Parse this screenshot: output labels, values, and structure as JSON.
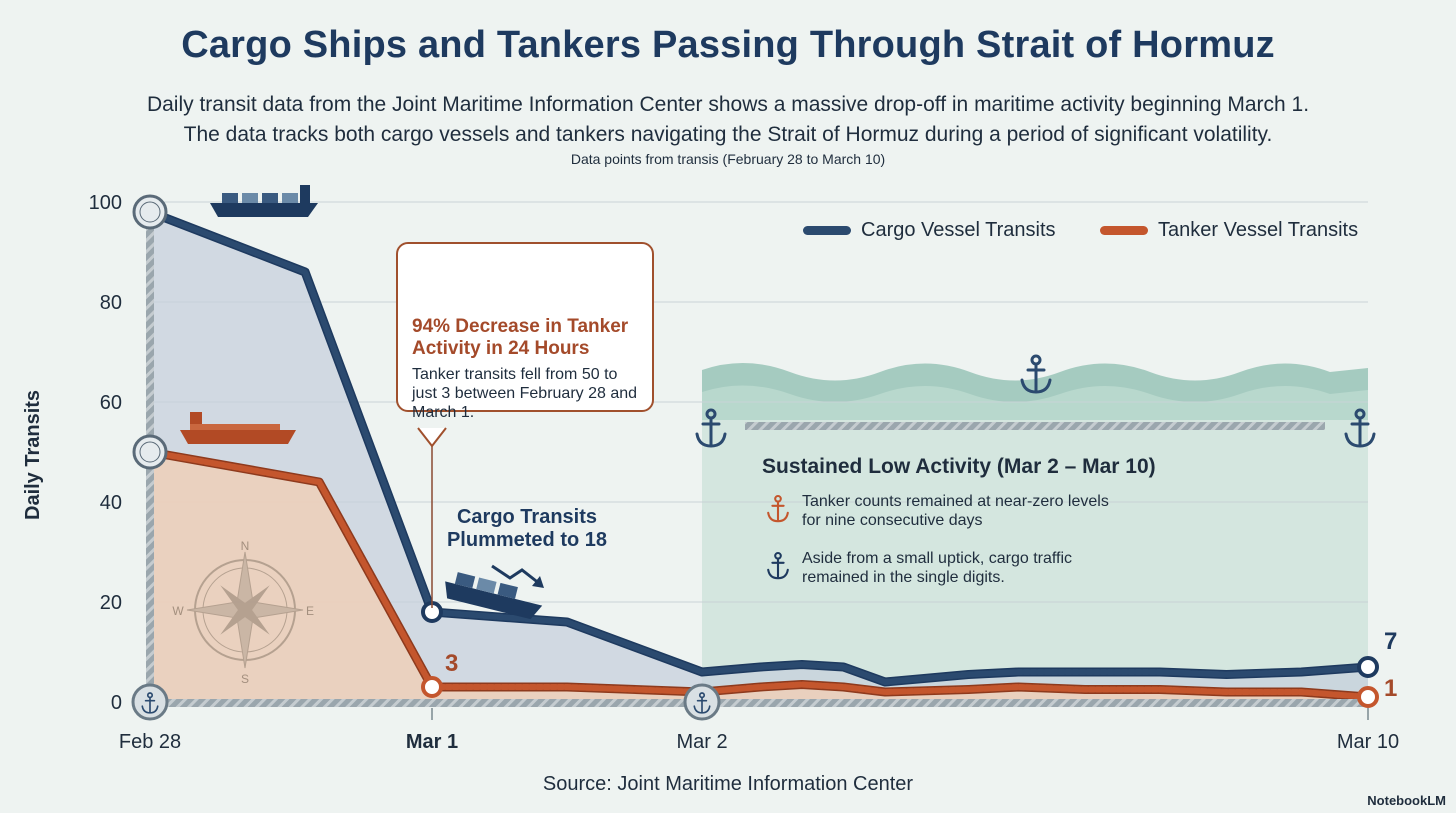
{
  "header": {
    "title": "Cargo Ships and Tankers Passing Through Strait of Hormuz",
    "subtitle_line1": "Daily transit data from the Joint Maritime Information Center shows a massive drop-off in maritime activity beginning March 1.",
    "subtitle_line2": "The data tracks both cargo vessels and tankers navigating the Strait of Hormuz during a period of significant volatility.",
    "note": "Data points from transis (February 28 to March 10)"
  },
  "chart_data": {
    "type": "area",
    "ylabel": "Daily Transits",
    "xlabel": "",
    "ylim": [
      0,
      100
    ],
    "yticks": [
      0,
      20,
      40,
      60,
      80,
      100
    ],
    "x_tick_labels": [
      "Feb 28",
      "Mar 1",
      "Mar 2",
      "Mar 10"
    ],
    "x_tick_positions": [
      0,
      1,
      2,
      10
    ],
    "xlim": [
      0,
      10
    ],
    "legend_position": "top-right",
    "grid": true,
    "series": [
      {
        "name": "Cargo Vessel Transits",
        "color": "#2b4a6f",
        "x": [
          0,
          0.55,
          1,
          1.5,
          2,
          2.7,
          3.2,
          3.7,
          4.2,
          5.2,
          5.8,
          6.6,
          7.5,
          8.3,
          9.2,
          10
        ],
        "values": [
          98,
          86,
          18,
          16,
          6,
          7,
          7.5,
          7,
          4,
          5.5,
          6,
          6,
          6,
          5.5,
          6,
          7
        ]
      },
      {
        "name": "Tanker Vessel Transits",
        "color": "#c4562d",
        "x": [
          0,
          0.6,
          1,
          1.5,
          2,
          2.7,
          3.2,
          3.7,
          4.2,
          5.2,
          5.8,
          6.6,
          7.5,
          8.3,
          9.2,
          10
        ],
        "values": [
          50,
          44,
          3,
          3,
          2,
          3,
          3.5,
          3,
          2,
          2.5,
          3,
          2.5,
          2.5,
          2,
          2,
          1
        ]
      }
    ],
    "annotations": {
      "cargo_mar1": "Cargo Transits Plummeted to 18",
      "tanker_mar1_value": "3",
      "cargo_end_value": "7",
      "tanker_end_value": "1"
    }
  },
  "callout": {
    "heading": "94% Decrease in Tanker Activity in 24 Hours",
    "body": "Tanker transits fell from 50 to just 3 between February 28 and March 1."
  },
  "panel": {
    "title": "Sustained Low Activity (Mar 2 – Mar 10)",
    "bullet1": "Tanker counts remained at near-zero levels for nine consecutive days",
    "bullet2": "Aside from a small uptick, cargo traffic remained in the single digits."
  },
  "compass": {
    "n": "N",
    "s": "S",
    "e": "E",
    "w": "W"
  },
  "footer": {
    "source": "Source: Joint Maritime Information Center",
    "brand": "NotebookLM"
  },
  "colors": {
    "cargo": "#2b4a6f",
    "tanker": "#c4562d",
    "title": "#1e3a5f",
    "panel": "#cfe3dc"
  }
}
